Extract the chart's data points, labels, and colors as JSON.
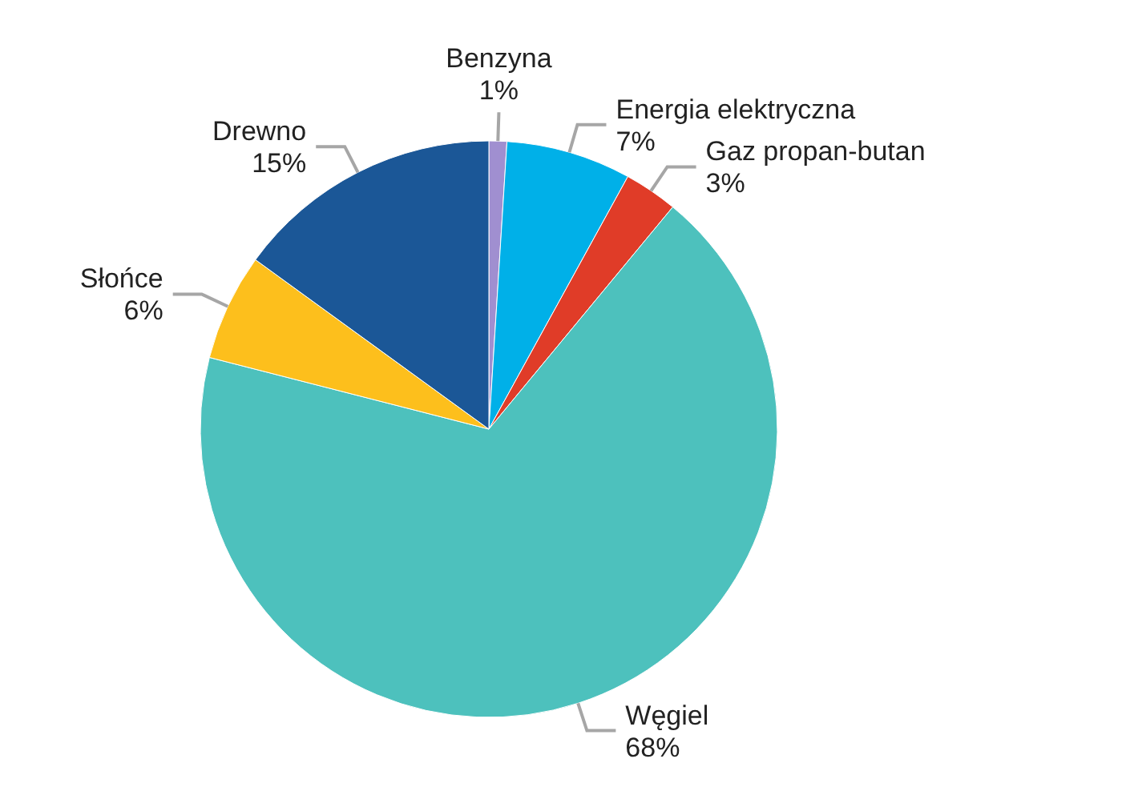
{
  "chart_data": {
    "type": "pie",
    "categories": [
      "Benzyna",
      "Energia elektryczna",
      "Gaz propan-butan",
      "Węgiel",
      "Słońce",
      "Drewno"
    ],
    "values": [
      1,
      7,
      3,
      68,
      6,
      15
    ],
    "value_labels": [
      "1%",
      "7%",
      "3%",
      "68%",
      "6%",
      "15%"
    ],
    "colors": [
      "#a08fd0",
      "#00b0e8",
      "#e03c28",
      "#4dc1bd",
      "#fdbf1c",
      "#1b5797"
    ]
  }
}
